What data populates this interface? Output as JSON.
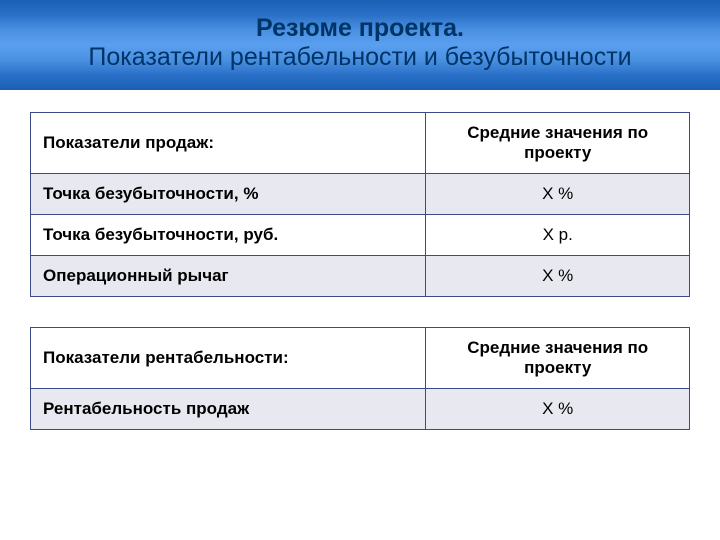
{
  "title": {
    "main": "Резюме проекта.",
    "sub": "Показатели рентабельности и безубыточности"
  },
  "table1": {
    "headers": [
      "Показатели продаж:",
      "Средние значения по проекту"
    ],
    "rows": [
      {
        "label": "Точка безубыточности, %",
        "value": "X %",
        "shaded": true
      },
      {
        "label": "Точка безубыточности, руб.",
        "value": "X р.",
        "shaded": false
      },
      {
        "label": "Операционный рычаг",
        "value": "X %",
        "shaded": true
      }
    ]
  },
  "table2": {
    "headers": [
      "Показатели рентабельности:",
      "Средние значения по проекту"
    ],
    "rows": [
      {
        "label": "Рентабельность продаж",
        "value": "X %",
        "shaded": true
      }
    ]
  },
  "colors": {
    "border": "#3a4a8a",
    "shaded_bg": "#e8e8f0",
    "title_text": "#003366"
  }
}
